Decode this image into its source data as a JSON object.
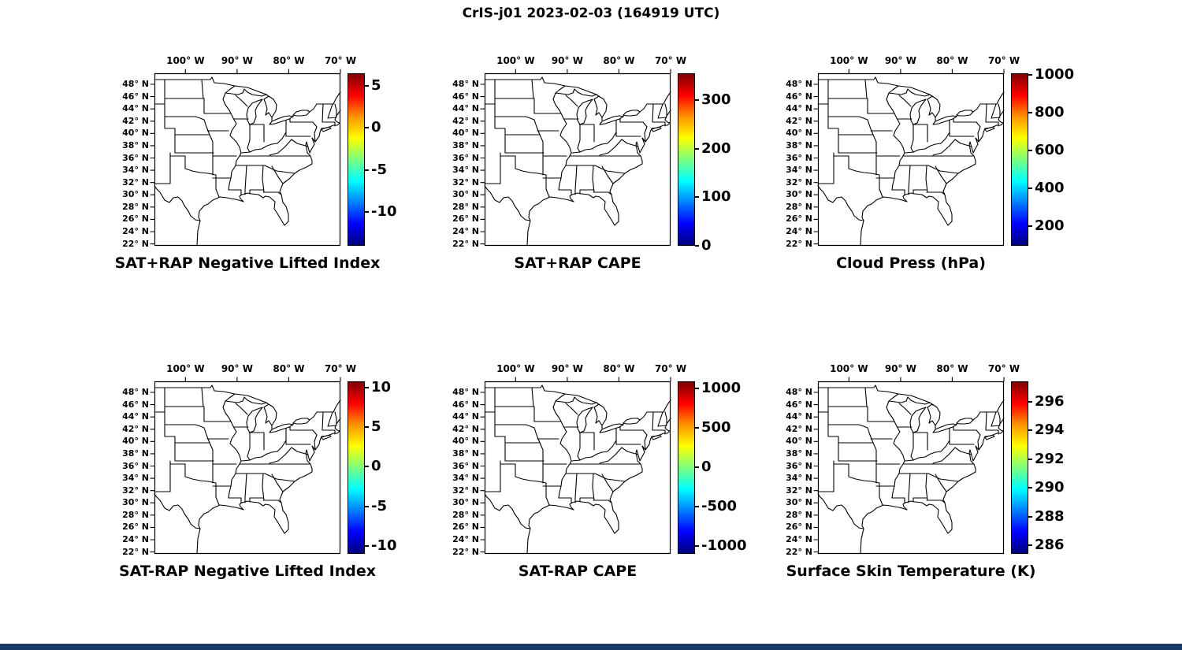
{
  "title": "CrIS-j01 2023-02-03 (164919 UTC)",
  "footer_bar": {
    "color": "#173a67"
  },
  "colormap": {
    "name": "jet",
    "stops": [
      "#00007f",
      "#0000ff",
      "#0080ff",
      "#00ffff",
      "#7dff7d",
      "#ffff00",
      "#ff9400",
      "#ff0000",
      "#7f0000"
    ]
  },
  "map_axes": {
    "lon": [
      {
        "value": 100,
        "label": "100° W"
      },
      {
        "value": 90,
        "label": "90° W"
      },
      {
        "value": 80,
        "label": "80° W"
      },
      {
        "value": 70,
        "label": "70° W"
      }
    ],
    "lat": [
      {
        "value": 48,
        "label": "48° N"
      },
      {
        "value": 46,
        "label": "46° N"
      },
      {
        "value": 44,
        "label": "44° N"
      },
      {
        "value": 42,
        "label": "42° N"
      },
      {
        "value": 40,
        "label": "40° N"
      },
      {
        "value": 38,
        "label": "38° N"
      },
      {
        "value": 36,
        "label": "36° N"
      },
      {
        "value": 34,
        "label": "34° N"
      },
      {
        "value": 32,
        "label": "32° N"
      },
      {
        "value": 30,
        "label": "30° N"
      },
      {
        "value": 28,
        "label": "28° N"
      },
      {
        "value": 26,
        "label": "26° N"
      },
      {
        "value": 24,
        "label": "24° N"
      },
      {
        "value": 22,
        "label": "22° N"
      }
    ]
  },
  "panels": [
    {
      "id": "sat-plus-rap-negative-lifted-index",
      "title": "SAT+RAP Negative Lifted Index",
      "colorbar": {
        "min": -14,
        "max": 6.5,
        "ticks": [
          5,
          0,
          -5,
          -10
        ]
      }
    },
    {
      "id": "sat-plus-rap-cape",
      "title": "SAT+RAP CAPE",
      "colorbar": {
        "min": 0,
        "max": 355,
        "ticks": [
          300,
          200,
          100,
          0
        ]
      }
    },
    {
      "id": "cloud-press",
      "title": "Cloud Press (hPa)",
      "colorbar": {
        "min": 95,
        "max": 1010,
        "ticks": [
          1000,
          800,
          600,
          400,
          200
        ]
      }
    },
    {
      "id": "sat-minus-rap-negative-lifted-index",
      "title": "SAT-RAP Negative Lifted Index",
      "colorbar": {
        "min": -11,
        "max": 10.8,
        "ticks": [
          10,
          5,
          0,
          -5,
          -10
        ]
      }
    },
    {
      "id": "sat-minus-rap-cape",
      "title": "SAT-RAP CAPE",
      "colorbar": {
        "min": -1100,
        "max": 1085,
        "ticks": [
          1000,
          500,
          0,
          -500,
          -1000
        ]
      }
    },
    {
      "id": "surface-skin-temperature",
      "title": "Surface Skin Temperature (K)",
      "colorbar": {
        "min": 285.4,
        "max": 297.4,
        "ticks": [
          296,
          294,
          292,
          290,
          288,
          286
        ]
      }
    }
  ],
  "chart_data": {
    "type": "map_grid",
    "figure_title": "CrIS-j01 2023-02-03 (164919 UTC)",
    "grid": {
      "rows": 2,
      "cols": 3
    },
    "shared_axes": {
      "projection": "equirectangular lat/lon over central-eastern United States with state boundaries",
      "x_ticks": [
        "100° W",
        "90° W",
        "80° W",
        "70° W"
      ],
      "y_ticks": [
        "48° N",
        "46° N",
        "44° N",
        "42° N",
        "40° N",
        "38° N",
        "36° N",
        "34° N",
        "32° N",
        "30° N",
        "28° N",
        "26° N",
        "24° N",
        "22° N"
      ],
      "lon_range_deg_W": [
        106,
        70
      ],
      "lat_range_deg_N": [
        22,
        50
      ],
      "grid_lines": false
    },
    "panels": [
      {
        "title": "SAT+RAP Negative Lifted Index",
        "colormap": "jet",
        "colorbar_ticks": [
          5,
          0,
          -5,
          -10
        ],
        "colorbar_range_est": [
          -14,
          6.5
        ],
        "plotted_points": "none visible (empty basemap)"
      },
      {
        "title": "SAT+RAP CAPE",
        "colormap": "jet",
        "colorbar_ticks": [
          300,
          200,
          100,
          0
        ],
        "colorbar_range_est": [
          0,
          355
        ],
        "plotted_points": "none visible (empty basemap)"
      },
      {
        "title": "Cloud Press (hPa)",
        "colormap": "jet",
        "colorbar_ticks": [
          1000,
          800,
          600,
          400,
          200
        ],
        "colorbar_range_est": [
          95,
          1010
        ],
        "plotted_points": "none visible (empty basemap)"
      },
      {
        "title": "SAT-RAP Negative Lifted Index",
        "colormap": "jet",
        "colorbar_ticks": [
          10,
          5,
          0,
          -5,
          -10
        ],
        "colorbar_range_est": [
          -11,
          10.8
        ],
        "plotted_points": "none visible (empty basemap)"
      },
      {
        "title": "SAT-RAP CAPE",
        "colormap": "jet",
        "colorbar_ticks": [
          1000,
          500,
          0,
          -500,
          -1000
        ],
        "colorbar_range_est": [
          -1100,
          1085
        ],
        "plotted_points": "none visible (empty basemap)"
      },
      {
        "title": "Surface Skin Temperature (K)",
        "colormap": "jet",
        "colorbar_ticks": [
          296,
          294,
          292,
          290,
          288,
          286
        ],
        "colorbar_range_est": [
          285.4,
          297.4
        ],
        "plotted_points": "none visible (empty basemap)"
      }
    ],
    "legend": "vertical jet colorbar on right side of each panel"
  }
}
